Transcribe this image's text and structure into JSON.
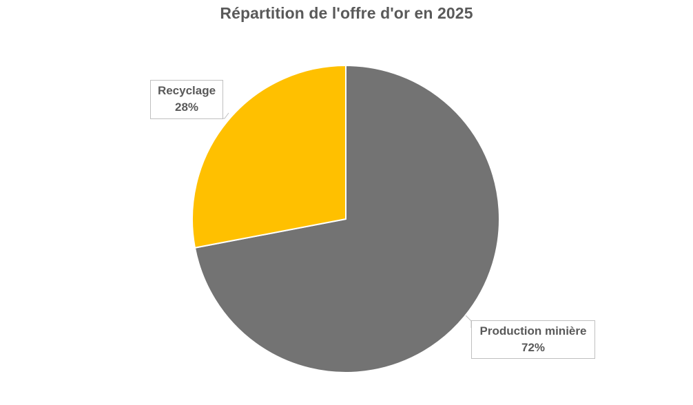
{
  "chart_data": {
    "type": "pie",
    "title": "Répartition de l'offre d'or en 2025",
    "slices": [
      {
        "label": "Production minière",
        "value": 72,
        "value_label": "72%",
        "color": "#737373"
      },
      {
        "label": "Recyclage",
        "value": 28,
        "value_label": "28%",
        "color": "#ffc000"
      }
    ],
    "start_angle": "12 o'clock, clockwise",
    "legend": "none",
    "data_labels": "callouts with category name and percentage"
  }
}
